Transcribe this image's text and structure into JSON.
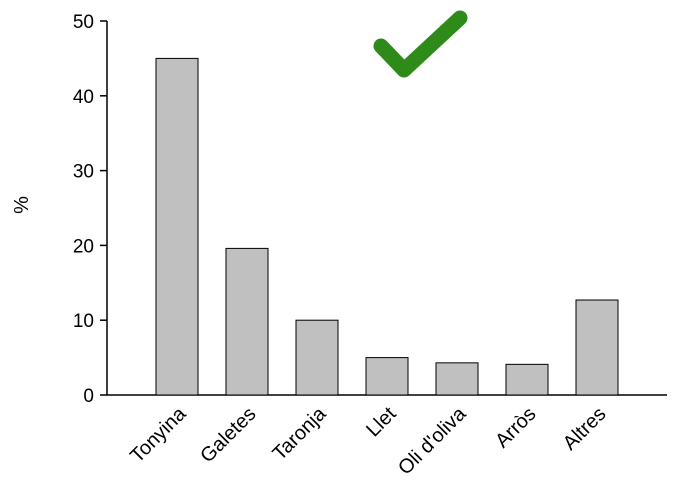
{
  "chart_data": {
    "type": "bar",
    "categories": [
      "Tonyina",
      "Galetes",
      "Taronja",
      "Llet",
      "Oli d'oliva",
      "Arròs",
      "Altres"
    ],
    "values": [
      45,
      19.6,
      10,
      5,
      4.3,
      4.1,
      12.7
    ],
    "title": "",
    "xlabel": "",
    "ylabel": "%",
    "ylim": [
      0,
      50
    ],
    "yticks": [
      0,
      10,
      20,
      30,
      40,
      50
    ],
    "grid": false,
    "bar_color": "#c0c0c0",
    "bar_edge_color": "#000000",
    "annotation_icon": "checkmark-icon",
    "annotation_color": "#2e8b1a"
  }
}
